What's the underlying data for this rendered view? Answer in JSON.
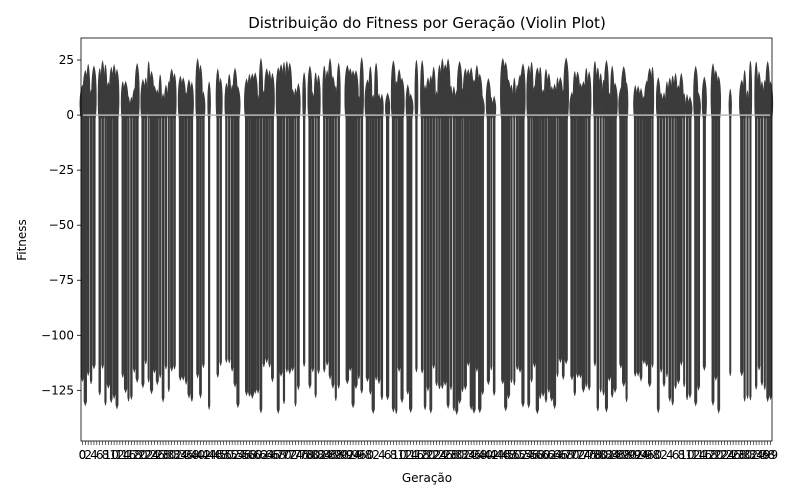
{
  "chart_data": {
    "type": "violin",
    "title": "Distribuição do Fitness por Geração (Violin Plot)",
    "xlabel": "Geração",
    "ylabel": "Fitness",
    "ylim": [
      -148,
      35
    ],
    "yticks": [
      25,
      0,
      -25,
      -50,
      -75,
      -100,
      -125
    ],
    "x_first_tick": "0",
    "x_last_tick": "99",
    "n_generations": 240,
    "max_fitness_range": [
      8,
      26
    ],
    "min_fitness_range": [
      -136,
      -112
    ],
    "typical_max": 14,
    "typical_min": -120,
    "median_value": 0,
    "grid": false,
    "legend": "none"
  }
}
